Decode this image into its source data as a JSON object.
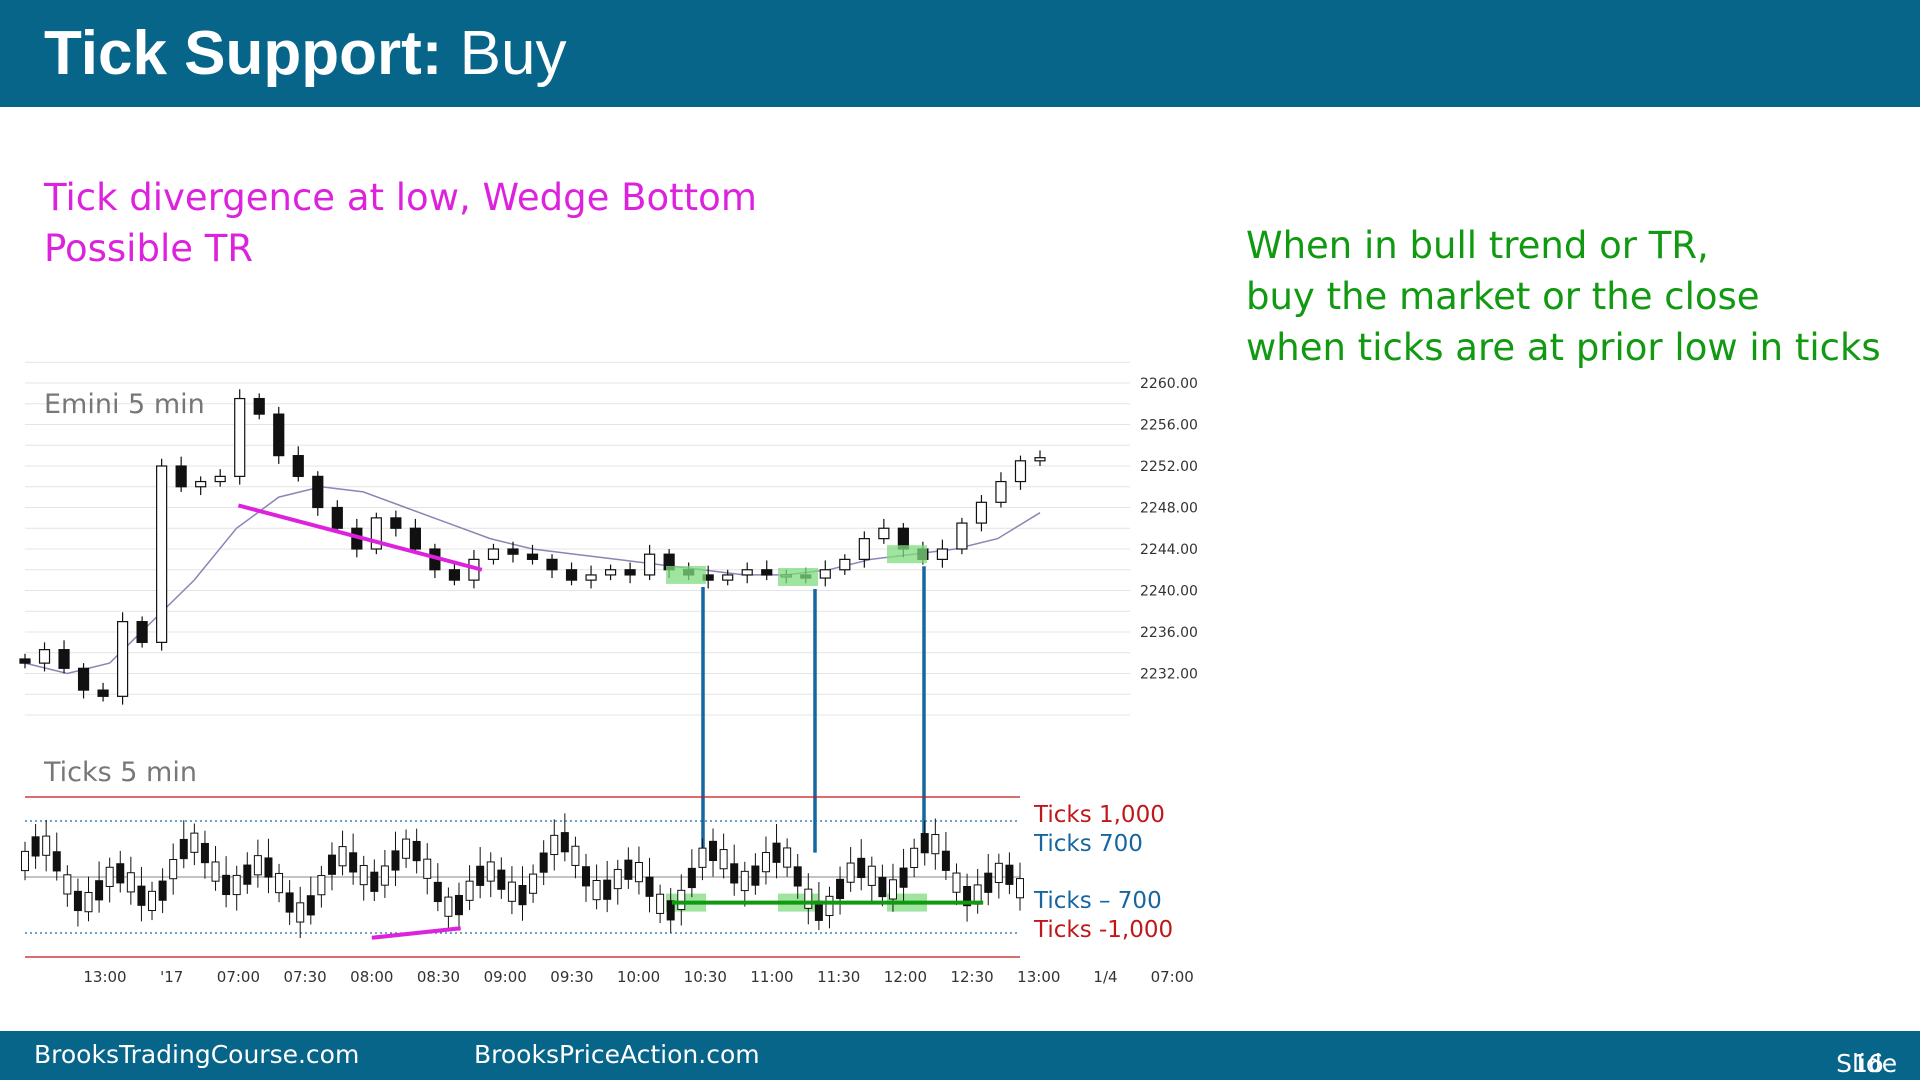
{
  "header": {
    "title_bold": "Tick Support:",
    "title_rest": " Buy",
    "bg_color": "#07658a"
  },
  "notes": {
    "left": [
      "Tick divergence at low, Wedge Bottom",
      "Possible TR"
    ],
    "left_color": "#dd22dd",
    "right": [
      "When in bull trend or TR,",
      "buy the market or the close",
      "when ticks are at prior low in ticks"
    ],
    "right_color": "#119911"
  },
  "footer": {
    "left1": "BrooksTradingCourse.com",
    "left2": "BrooksPriceAction.com",
    "slide_label": "Slide",
    "slide_number": "16"
  },
  "chart_data": [
    {
      "type": "candlestick",
      "label": "Emini 5 min",
      "ylim": [
        2228,
        2261
      ],
      "y_ticks": [
        "2260.00",
        "2256.00",
        "2252.00",
        "2248.00",
        "2244.00",
        "2240.00",
        "2236.00",
        "2232.00"
      ],
      "x_ticks": [
        "13:00",
        "'17",
        "07:00",
        "07:30",
        "08:00",
        "08:30",
        "09:00",
        "09:30",
        "10:00",
        "10:30",
        "11:00",
        "11:30",
        "12:00",
        "12:30",
        "13:00",
        "1/4",
        "07:00"
      ],
      "close_path": [
        2233,
        2234.3,
        2232.5,
        2230.4,
        2229.8,
        2237,
        2235,
        2252,
        2250,
        2250.5,
        2251,
        2258.5,
        2257,
        2253,
        2251,
        2248,
        2246,
        2244,
        2247,
        2246,
        2244,
        2242,
        2241,
        2243,
        2244,
        2243.5,
        2243,
        2242,
        2241,
        2241.5,
        2242,
        2241.5,
        2243.5,
        2242,
        2241.5,
        2241,
        2241.5,
        2242,
        2241.5,
        2241.5,
        2241.2,
        2242,
        2243,
        2245,
        2246,
        2244,
        2243,
        2244,
        2246.5,
        2248.5,
        2250.5,
        2252.5,
        2252.8
      ],
      "moving_average": {
        "color": "#8a85b5",
        "approx": [
          2233,
          2232,
          2233,
          2237,
          2241,
          2246,
          2249,
          2250,
          2249.5,
          2248,
          2246.5,
          2245,
          2244,
          2243.5,
          2243,
          2242.5,
          2242,
          2241.5,
          2241.5,
          2242,
          2243,
          2243.5,
          2244,
          2245,
          2247.5
        ]
      },
      "annotations": [
        {
          "type": "trendline",
          "color": "#dd22dd",
          "from": {
            "x": "07:00",
            "y": 2248.2
          },
          "to": {
            "x": "08:45",
            "y": 2242
          }
        }
      ]
    },
    {
      "type": "candlestick",
      "label": "Ticks 5 min",
      "ylim": [
        -1100,
        1100
      ],
      "levels": [
        {
          "label": "Ticks 1,000",
          "value": 1000,
          "color": "#c01818",
          "style": "solid"
        },
        {
          "label": "Ticks 700",
          "value": 700,
          "color": "#1766a0",
          "style": "dotted"
        },
        {
          "label": "Ticks – 700",
          "value": -700,
          "color": "#1766a0",
          "style": "dotted"
        },
        {
          "label": "Ticks -1,000",
          "value": -1000,
          "color": "#c01818",
          "style": "solid"
        }
      ],
      "annotations": [
        {
          "type": "divergence_line",
          "color": "#dd22dd",
          "from": {
            "x": "08:00",
            "y": -760
          },
          "to": {
            "x": "08:40",
            "y": -640
          }
        },
        {
          "type": "support_line",
          "color": "#119911",
          "from": {
            "x": "10:15",
            "y": -320
          },
          "to": {
            "x": "12:35",
            "y": -320
          }
        }
      ]
    }
  ],
  "connectors": {
    "color": "#1766a0",
    "count": 3
  },
  "highlights": {
    "color": "#7fdc7f"
  }
}
